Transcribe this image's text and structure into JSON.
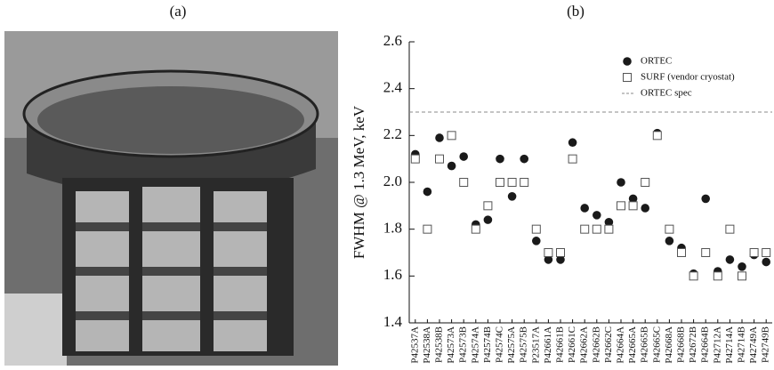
{
  "photo_label": "(a)",
  "chart_data": {
    "type": "scatter",
    "title": "(b)",
    "y_label": "FWHM @ 1.3 MeV, keV",
    "categories": [
      "P42537A",
      "P42538A",
      "P42538B",
      "P42573A",
      "P42573B",
      "P42574A",
      "P42574B",
      "P42574C",
      "P42575A",
      "P42575B",
      "P23517A",
      "P42661A",
      "P42661B",
      "P42661C",
      "P42662A",
      "P42662B",
      "P42662C",
      "P42664A",
      "P42665A",
      "P42665B",
      "P42665C",
      "P42668A",
      "P42668B",
      "P42672B",
      "P42664B",
      "P42712A",
      "P42714A",
      "P42714B",
      "P42749A",
      "P42749B"
    ],
    "series": [
      {
        "name": "ORTEC",
        "color": "#1a1a1a",
        "marker": "filled-circle",
        "values": [
          2.12,
          1.96,
          2.19,
          2.07,
          2.11,
          1.82,
          1.84,
          2.1,
          1.94,
          2.1,
          1.75,
          1.67,
          1.67,
          2.17,
          1.89,
          1.86,
          1.83,
          2.0,
          1.93,
          1.89,
          2.21,
          1.75,
          1.72,
          1.61,
          1.93,
          1.62,
          1.67,
          1.64,
          1.69,
          1.66
        ]
      },
      {
        "name": "SURF (vendor cryostat)",
        "color": "#555555",
        "marker": "open-square",
        "values": [
          2.1,
          1.8,
          2.1,
          2.2,
          2.0,
          1.8,
          1.9,
          2.0,
          2.0,
          2.0,
          1.8,
          1.7,
          1.7,
          2.1,
          1.8,
          1.8,
          1.8,
          1.9,
          1.9,
          2.0,
          2.2,
          1.8,
          1.7,
          1.6,
          1.7,
          1.6,
          1.8,
          1.6,
          1.7,
          1.7
        ]
      }
    ],
    "reference_line": {
      "name": "ORTEC spec",
      "value": 2.3,
      "color": "#888888",
      "style": "dashed"
    },
    "ylim": [
      1.4,
      2.6
    ],
    "yticks": [
      1.4,
      1.6,
      1.8,
      {
        "value": 2,
        "label": "2.0"
      },
      2.2,
      2.4,
      2.6
    ]
  }
}
